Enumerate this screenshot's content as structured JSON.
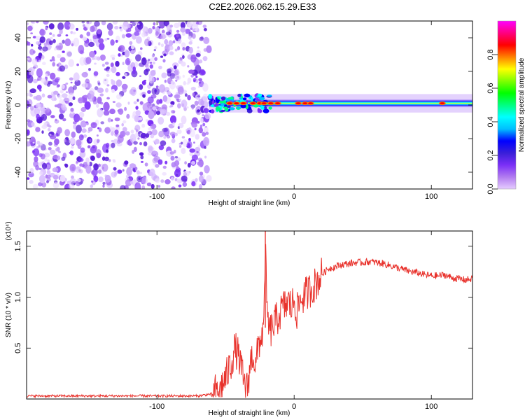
{
  "title": "C2E2.2026.062.15.29.E33",
  "chart_data": [
    {
      "type": "heatmap",
      "name": "spectrogram",
      "xlabel": "Height of straight line (km)",
      "ylabel": "Frequency (Hz)",
      "xlim": [
        -195,
        130
      ],
      "ylim": [
        -50,
        50
      ],
      "xticks": [
        -100,
        0,
        100
      ],
      "xtick_labels": [
        "-100",
        "0",
        "100"
      ],
      "yticks": [
        -40,
        -20,
        0,
        20,
        40
      ],
      "ytick_labels": [
        "-40",
        "-20",
        "0",
        "20",
        "40"
      ],
      "noise_region_x": [
        -195,
        -62
      ],
      "signal_start_x": -62,
      "signal_center_hz": 1,
      "signal_halfwidth_hz": 2.5,
      "hotspots_x": [
        -47,
        -42,
        -37,
        -30,
        -25,
        -22,
        -17,
        -12,
        3,
        8,
        12,
        108
      ],
      "colorbar": {
        "label": "Normalized spectral amplitude",
        "range": [
          0,
          1
        ],
        "ticks": [
          0.0,
          0.2,
          0.4,
          0.6,
          0.8
        ],
        "tick_labels": [
          "0.0",
          "0.2",
          "0.4",
          "0.6",
          "0.8"
        ],
        "colors": [
          "#e6ccff",
          "#b27cf0",
          "#7b2ff7",
          "#3a1fd8",
          "#0000ff",
          "#00bfff",
          "#00ffff",
          "#00ff80",
          "#00ff00",
          "#80ff00",
          "#ffff00",
          "#ff8000",
          "#ff0000",
          "#ff0080",
          "#ff00ff"
        ]
      }
    },
    {
      "type": "line",
      "name": "snr",
      "xlabel": "Height of straight line (km)",
      "ylabel": "SNR (10 * v/v)",
      "yscale_label": "(x10⁴)",
      "xlim": [
        -195,
        130
      ],
      "ylim": [
        0,
        1.65
      ],
      "xticks": [
        -100,
        0,
        100
      ],
      "xtick_labels": [
        "-100",
        "0",
        "100"
      ],
      "yticks": [
        0.5,
        1.0,
        1.5
      ],
      "ytick_labels": [
        "0.5",
        "1.0",
        "1.5"
      ],
      "series": [
        {
          "name": "SNR",
          "color": "#e8302a",
          "x": [
            -195,
            -150,
            -100,
            -70,
            -60,
            -55,
            -50,
            -46,
            -43,
            -40,
            -38,
            -36,
            -34,
            -32,
            -30,
            -28,
            -26,
            -24,
            -22,
            -21,
            -20,
            -18,
            -16,
            -14,
            -12,
            -10,
            -8,
            -6,
            -4,
            -2,
            0,
            2,
            4,
            6,
            8,
            10,
            12,
            15,
            18,
            20,
            25,
            30,
            35,
            40,
            45,
            50,
            55,
            60,
            65,
            70,
            75,
            80,
            85,
            90,
            95,
            100,
            105,
            110,
            115,
            120,
            125,
            130
          ],
          "y": [
            0.03,
            0.03,
            0.03,
            0.03,
            0.05,
            0.1,
            0.2,
            0.35,
            0.5,
            0.4,
            0.25,
            0.12,
            0.1,
            0.35,
            0.45,
            0.3,
            0.55,
            0.6,
            0.7,
            1.6,
            0.9,
            0.65,
            0.7,
            0.75,
            0.8,
            0.85,
            0.9,
            0.92,
            0.95,
            0.9,
            0.98,
            0.85,
            0.95,
            1.0,
            1.02,
            1.05,
            1.08,
            1.12,
            1.18,
            1.22,
            1.28,
            1.3,
            1.32,
            1.33,
            1.34,
            1.34,
            1.35,
            1.34,
            1.33,
            1.31,
            1.29,
            1.27,
            1.25,
            1.24,
            1.22,
            1.21,
            1.21,
            1.22,
            1.19,
            1.18,
            1.17,
            1.18
          ]
        }
      ]
    }
  ]
}
